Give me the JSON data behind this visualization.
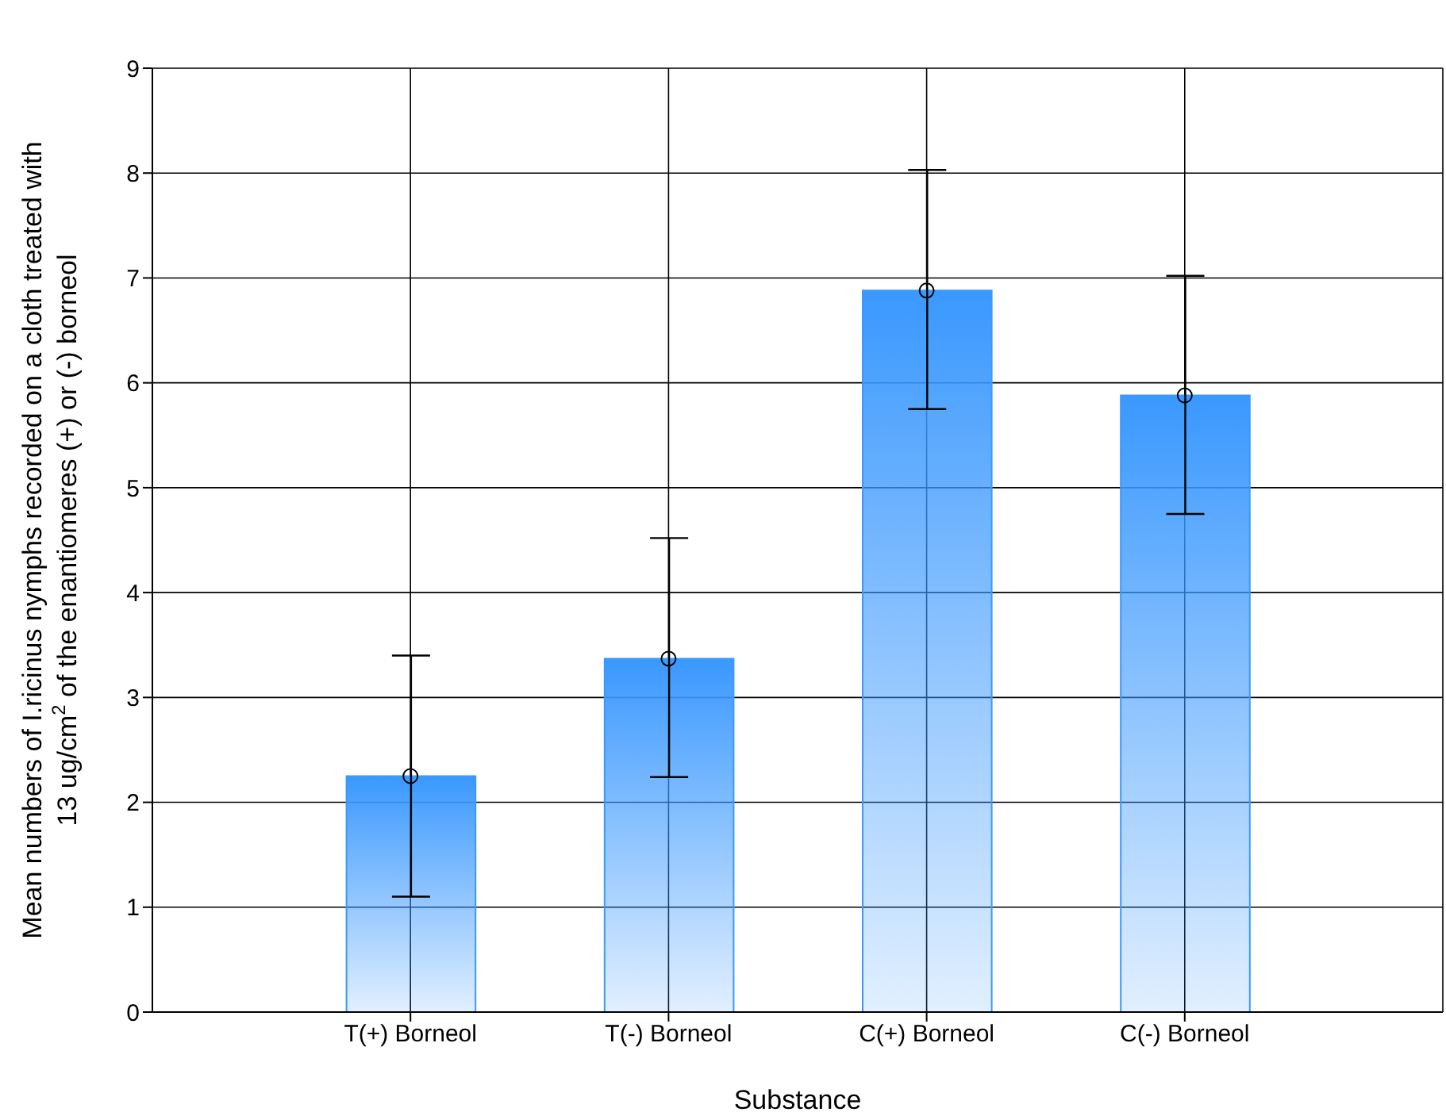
{
  "chart_data": {
    "type": "bar",
    "xlabel": "Substance",
    "ylabel": "Mean numbers of I.ricinus nymphs recorded on a cloth treated with\n13 ug/cm$^{2}$ of the enantiomeres (+) or (-) borneol",
    "categories": [
      "T(+) Borneol",
      "T(-) Borneol",
      "C(+) Borneol",
      "C(-) Borneol"
    ],
    "series": [
      {
        "color": "#3a98fe",
        "values": [
          2.25,
          3.37,
          6.88,
          5.88
        ],
        "errors": [
          [
            1.1,
            3.4
          ],
          [
            2.24,
            4.52
          ],
          [
            5.75,
            8.03
          ],
          [
            4.75,
            7.02
          ]
        ]
      },
      {
        "type": "scatter",
        "color": "#000000",
        "x": [
          "T(+) Borneol",
          "T(-) Borneol",
          "C(+) Borneol",
          "C(-) Borneol"
        ],
        "values": [
          2.25,
          3.37,
          6.88,
          5.88
        ]
      }
    ],
    "marker": "circle",
    "ylim": [
      0,
      9
    ],
    "yticks": [
      0,
      1,
      2,
      3,
      4,
      5,
      6,
      7,
      8,
      9
    ],
    "grid": true
  }
}
